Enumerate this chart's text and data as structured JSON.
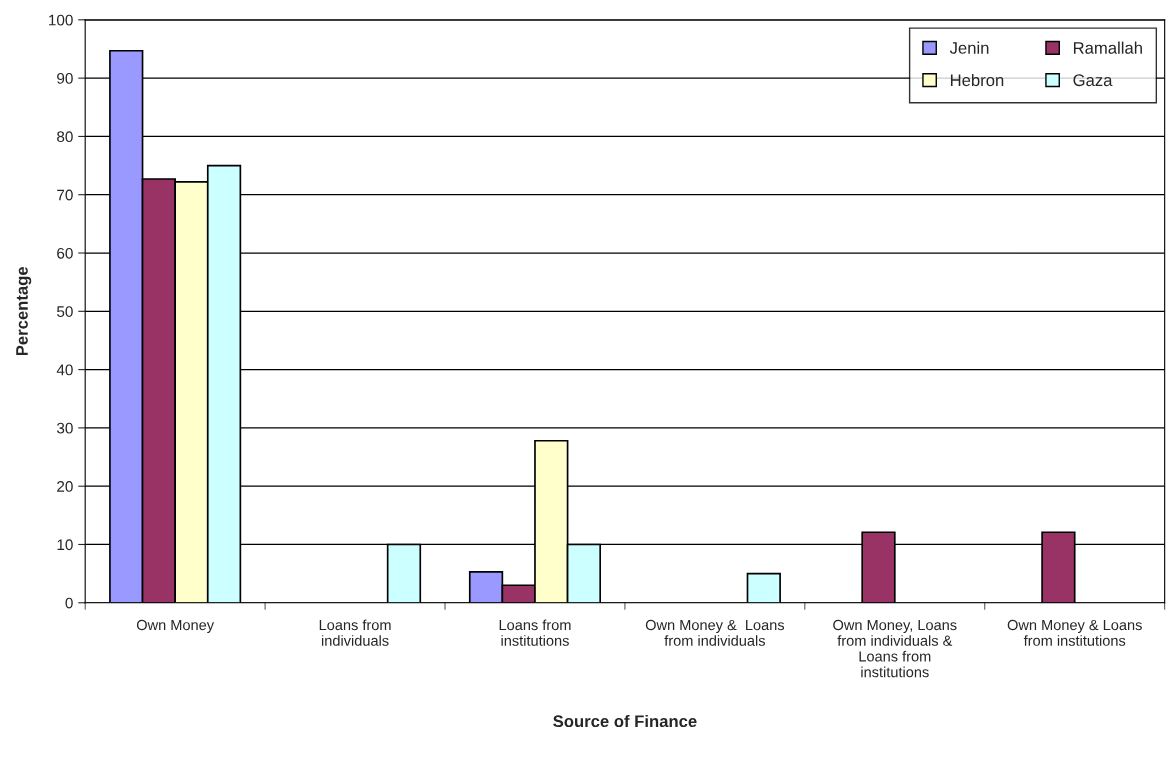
{
  "chart_data": {
    "type": "bar",
    "xlabel": "Source of Finance",
    "ylabel": "Percentage",
    "categories": [
      "Own Money",
      "Loans from individuals",
      "Loans from institutions",
      "Own Money &  Loans from individuals",
      "Own Money, Loans from individuals & Loans from institutions",
      "Own Money & Loans from institutions"
    ],
    "series": [
      {
        "name": "Jenin",
        "color": "#9999ff",
        "values": [
          94.7,
          null,
          5.3,
          null,
          null,
          null
        ]
      },
      {
        "name": "Ramallah",
        "color": "#993366",
        "values": [
          72.7,
          null,
          3.0,
          null,
          12.1,
          12.1
        ]
      },
      {
        "name": "Hebron",
        "color": "#ffffcc",
        "values": [
          72.2,
          null,
          27.8,
          null,
          null,
          null
        ]
      },
      {
        "name": "Gaza",
        "color": "#ccffff",
        "values": [
          75.0,
          10.0,
          10.0,
          5.0,
          null,
          null
        ]
      }
    ],
    "ylim": [
      0,
      100
    ],
    "yticks": [
      0,
      10,
      20,
      30,
      40,
      50,
      60,
      70,
      80,
      90,
      100
    ],
    "grid": "y",
    "legend": "top right"
  }
}
